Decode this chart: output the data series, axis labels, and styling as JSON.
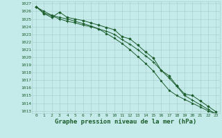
{
  "x": [
    0,
    1,
    2,
    3,
    4,
    5,
    6,
    7,
    8,
    9,
    10,
    11,
    12,
    13,
    14,
    15,
    16,
    17,
    18,
    19,
    20,
    21,
    22,
    23
  ],
  "line1": [
    1026.6,
    1026.0,
    1025.5,
    1025.2,
    1025.0,
    1024.7,
    1024.4,
    1024.1,
    1023.7,
    1023.1,
    1022.5,
    1021.8,
    1021.0,
    1020.1,
    1019.2,
    1018.2,
    1016.9,
    1015.7,
    1015.0,
    1014.5,
    1014.0,
    1013.5,
    1013.0,
    1012.6
  ],
  "line2": [
    1026.6,
    1025.7,
    1025.2,
    1025.9,
    1025.2,
    1025.0,
    1024.8,
    1024.5,
    1024.2,
    1023.9,
    1023.6,
    1022.7,
    1022.4,
    1021.6,
    1020.7,
    1019.9,
    1018.3,
    1017.6,
    1016.3,
    1015.2,
    1015.0,
    1014.3,
    1013.6,
    1012.9
  ],
  "line3": [
    1026.6,
    1025.8,
    1025.4,
    1025.0,
    1024.7,
    1024.5,
    1024.2,
    1024.0,
    1023.7,
    1023.4,
    1023.0,
    1022.3,
    1021.7,
    1021.0,
    1020.2,
    1019.4,
    1018.3,
    1017.3,
    1016.2,
    1015.0,
    1014.4,
    1013.8,
    1013.2,
    1012.6
  ],
  "bg_color": "#c5eaea",
  "grid_color": "#a8c8c8",
  "line_color": "#1a5c2a",
  "marker_color": "#1a5c2a",
  "xlabel": "Graphe pression niveau de la mer (hPa)",
  "ylim": [
    1013,
    1027
  ],
  "xlim": [
    0,
    23
  ],
  "yticks": [
    1013,
    1014,
    1015,
    1016,
    1017,
    1018,
    1019,
    1020,
    1021,
    1022,
    1023,
    1024,
    1025,
    1026,
    1027
  ],
  "xticks": [
    0,
    1,
    2,
    3,
    4,
    5,
    6,
    7,
    8,
    9,
    10,
    11,
    12,
    13,
    14,
    15,
    16,
    17,
    18,
    19,
    20,
    21,
    22,
    23
  ],
  "tick_fontsize": 4.5,
  "xlabel_fontsize": 6.5,
  "tick_color": "#1a5c2a",
  "axis_label_color": "#1a5c2a"
}
